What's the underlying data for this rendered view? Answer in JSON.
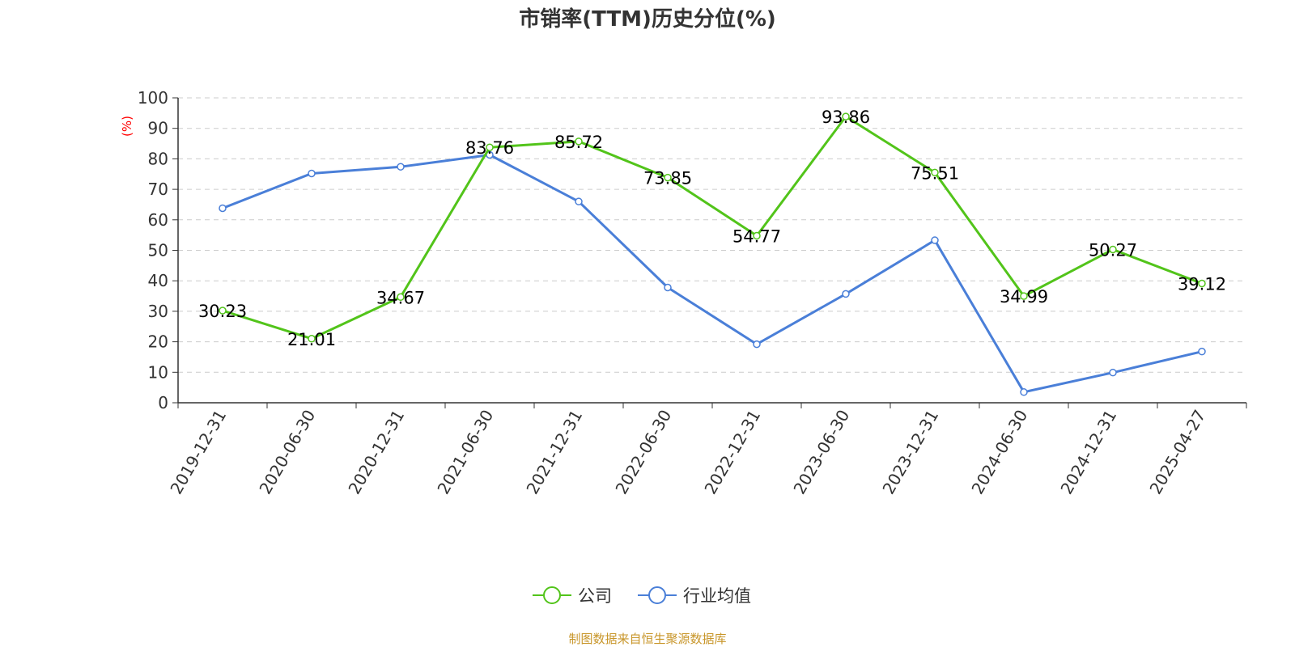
{
  "chart_data": {
    "type": "line",
    "title": "市销率(TTM)历史分位(%)",
    "ylabel": "(%)",
    "xlabel": "",
    "ylim": [
      0,
      100
    ],
    "yticks": [
      "0",
      "10",
      "20",
      "30",
      "40",
      "50",
      "60",
      "70",
      "80",
      "90",
      "100"
    ],
    "grid": "horizontal dashed",
    "legend_position": "bottom-center",
    "categories": [
      "2019-12-31",
      "2020-06-30",
      "2020-12-31",
      "2021-06-30",
      "2021-12-31",
      "2022-06-30",
      "2022-12-31",
      "2023-06-30",
      "2023-12-31",
      "2024-06-30",
      "2024-12-31",
      "2025-04-27"
    ],
    "series": [
      {
        "name": "公司",
        "color": "#52c41a",
        "values": [
          30.23,
          21.01,
          34.67,
          83.76,
          85.72,
          73.85,
          54.77,
          93.86,
          75.51,
          34.99,
          50.27,
          39.12
        ],
        "labels": [
          "30.23",
          "21.01",
          "34.67",
          "83.76",
          "85.72",
          "73.85",
          "54.77",
          "93.86",
          "75.51",
          "34.99",
          "50.27",
          "39.12"
        ]
      },
      {
        "name": "行业均值",
        "color": "#4a7fd8",
        "values": [
          63.8,
          75.2,
          77.4,
          81.3,
          66.0,
          37.8,
          19.2,
          35.7,
          53.3,
          3.5,
          9.9,
          16.8
        ]
      }
    ],
    "source": "制图数据来自恒生聚源数据库"
  }
}
